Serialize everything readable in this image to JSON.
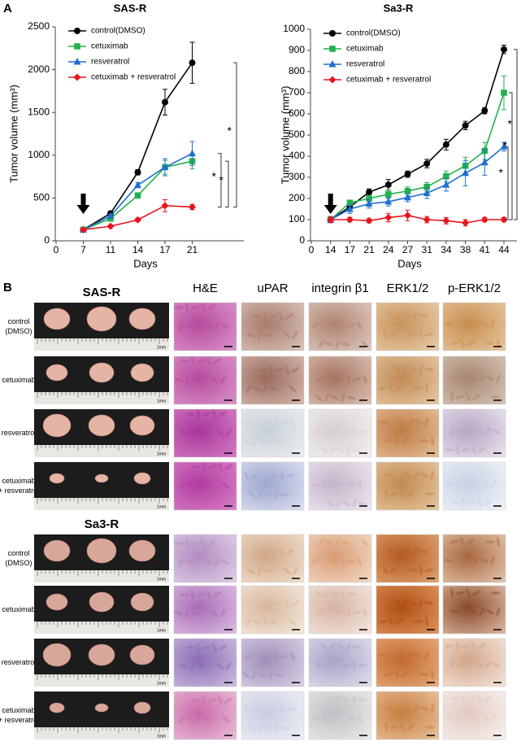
{
  "panel_a": {
    "label": "A"
  },
  "chart_data": [
    {
      "type": "line",
      "title": "SAS-R",
      "xlabel": "Days",
      "ylabel": "Tumor volume (mm³)",
      "categories": [
        "0",
        "7",
        "11",
        "14",
        "17",
        "21"
      ],
      "series": [
        {
          "name": "control(DMSO)",
          "color": "#000000",
          "marker": "circle",
          "values": [
            null,
            130,
            320,
            800,
            1620,
            2080
          ],
          "errors": [
            null,
            15,
            20,
            30,
            150,
            240
          ]
        },
        {
          "name": "cetuximab",
          "color": "#22b14c",
          "marker": "square",
          "values": [
            null,
            130,
            260,
            530,
            860,
            930
          ],
          "errors": [
            null,
            15,
            20,
            30,
            80,
            90
          ]
        },
        {
          "name": "resveratrol",
          "color": "#1f6fd0",
          "marker": "triangle",
          "values": [
            null,
            130,
            290,
            650,
            860,
            1020
          ],
          "errors": [
            null,
            15,
            20,
            30,
            100,
            140
          ]
        },
        {
          "name": "cetuximab + resveratrol",
          "color": "#e8141c",
          "marker": "diamond",
          "values": [
            null,
            130,
            170,
            245,
            410,
            395
          ],
          "errors": [
            null,
            15,
            15,
            20,
            70,
            30
          ]
        }
      ],
      "ylim": [
        0,
        2500
      ],
      "yticks": [
        0,
        500,
        1000,
        1500,
        2000,
        2500
      ],
      "annotations": [
        "*",
        "*",
        "*"
      ]
    },
    {
      "type": "line",
      "title": "Sa3-R",
      "xlabel": "Days",
      "ylabel": "Tumor volume (mm³)",
      "categories": [
        "0",
        "14",
        "17",
        "21",
        "24",
        "27",
        "31",
        "34",
        "38",
        "41",
        "44"
      ],
      "series": [
        {
          "name": "control(DMSO)",
          "color": "#000000",
          "marker": "circle",
          "values": [
            null,
            100,
            160,
            230,
            265,
            315,
            365,
            455,
            545,
            615,
            905
          ],
          "errors": [
            null,
            10,
            10,
            15,
            25,
            15,
            20,
            25,
            20,
            15,
            20
          ]
        },
        {
          "name": "cetuximab",
          "color": "#22b14c",
          "marker": "square",
          "values": [
            null,
            100,
            180,
            200,
            220,
            235,
            255,
            305,
            355,
            425,
            700
          ],
          "errors": [
            null,
            10,
            10,
            15,
            20,
            20,
            20,
            25,
            40,
            40,
            80
          ]
        },
        {
          "name": "resveratrol",
          "color": "#1f6fd0",
          "marker": "triangle",
          "values": [
            null,
            100,
            150,
            175,
            185,
            205,
            225,
            265,
            320,
            370,
            445
          ],
          "errors": [
            null,
            10,
            20,
            20,
            20,
            20,
            25,
            30,
            60,
            60,
            20
          ]
        },
        {
          "name": "cetuximab + resveratrol",
          "color": "#e8141c",
          "marker": "diamond",
          "values": [
            null,
            100,
            100,
            95,
            110,
            120,
            100,
            95,
            85,
            100,
            100
          ],
          "errors": [
            null,
            15,
            10,
            10,
            20,
            25,
            15,
            15,
            15,
            10,
            10
          ]
        }
      ],
      "ylim": [
        0,
        1000
      ],
      "yticks": [
        0,
        100,
        200,
        300,
        400,
        500,
        600,
        700,
        800,
        900,
        1000
      ],
      "annotations": [
        "*",
        "*",
        "*"
      ]
    }
  ],
  "panel_b": {
    "label": "B",
    "scale": "1mm",
    "columns": [
      "H&E",
      "uPAR",
      "integrin β1",
      "ERK1/2",
      "p-ERK1/2"
    ],
    "groups": [
      {
        "title": "SAS-R",
        "rows": [
          [
            "control",
            "(DMSO)"
          ],
          [
            "cetuximab"
          ],
          [
            "resveratrol"
          ],
          [
            "cetuximab",
            "+ resveratrol"
          ]
        ]
      },
      {
        "title": "Sa3-R",
        "rows": [
          [
            "control",
            "(DMSO)"
          ],
          [
            "cetuximab"
          ],
          [
            "resveratrol"
          ],
          [
            "cetuximab",
            "+ resveratrol"
          ]
        ]
      }
    ]
  }
}
